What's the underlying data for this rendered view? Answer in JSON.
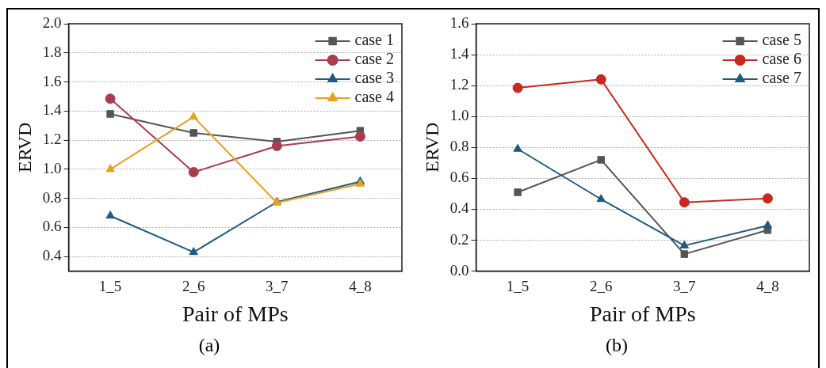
{
  "chart_data": [
    {
      "type": "line",
      "xlabel": "Pair of MPs",
      "ylabel": "ERVD",
      "annotations": [
        "(a)"
      ],
      "categories": [
        "1_5",
        "2_6",
        "3_7",
        "4_8"
      ],
      "series": [
        {
          "name": "case 1",
          "color": "#555555",
          "marker": "square",
          "values": [
            1.38,
            1.25,
            1.19,
            1.265
          ]
        },
        {
          "name": "case 2",
          "color": "#a83c50",
          "marker": "circle",
          "values": [
            1.485,
            0.98,
            1.16,
            1.225
          ]
        },
        {
          "name": "case 3",
          "color": "#1f5a80",
          "marker": "triangle",
          "values": [
            0.68,
            0.43,
            0.775,
            0.915
          ]
        },
        {
          "name": "case 4",
          "color": "#e8a020",
          "marker": "triangle",
          "values": [
            1.0,
            1.36,
            0.77,
            0.9
          ]
        }
      ],
      "ylim": [
        0.3,
        2.0
      ],
      "yticks": [
        0.4,
        0.6,
        0.8,
        {
          "value": 1,
          "label": "1.0"
        },
        1.2,
        1.4,
        1.6,
        1.8,
        {
          "value": 2,
          "label": "2.0"
        }
      ],
      "grid": "y",
      "legend": "top right"
    },
    {
      "type": "line",
      "xlabel": "Pair of MPs",
      "ylabel": "ERVD",
      "annotations": [
        "(b)"
      ],
      "categories": [
        "1_5",
        "2_6",
        "3_7",
        "4_8"
      ],
      "series": [
        {
          "name": "case 5",
          "color": "#555555",
          "marker": "square",
          "values": [
            0.51,
            0.72,
            0.11,
            0.265
          ]
        },
        {
          "name": "case 6",
          "color": "#c8281e",
          "marker": "circle",
          "values": [
            1.185,
            1.24,
            0.445,
            0.47
          ]
        },
        {
          "name": "case 7",
          "color": "#1f5a80",
          "marker": "triangle",
          "values": [
            0.79,
            0.465,
            0.165,
            0.295
          ]
        }
      ],
      "ylim": [
        0,
        1.6
      ],
      "yticks": [
        {
          "value": 0,
          "label": "0.0"
        },
        0.2,
        0.4,
        0.6,
        0.8,
        {
          "value": 1,
          "label": "1.0"
        },
        1.2,
        1.4,
        1.6
      ],
      "grid": "y",
      "legend": "top right"
    }
  ]
}
